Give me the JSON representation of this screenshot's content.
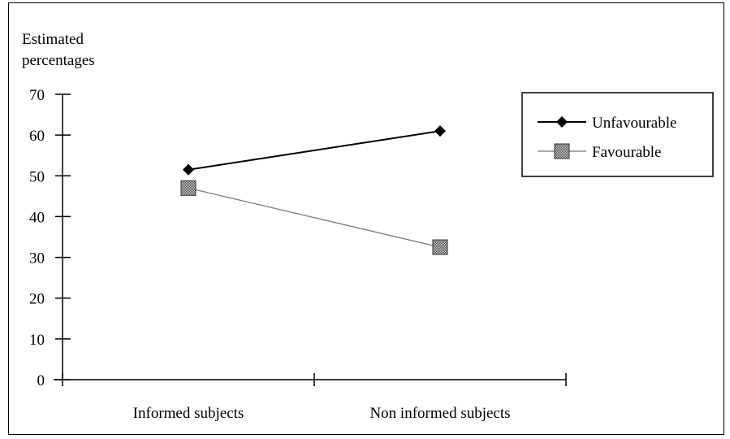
{
  "chart_data": {
    "type": "line",
    "title": "",
    "ylabel_lines": [
      "Estimated",
      "percentages"
    ],
    "xlabel": "",
    "categories": [
      "Informed subjects",
      "Non informed subjects"
    ],
    "ylim": [
      0,
      70
    ],
    "yticks": [
      0,
      10,
      20,
      30,
      40,
      50,
      60,
      70
    ],
    "grid": false,
    "legend_position": "top-right",
    "series": [
      {
        "name": "Unfavourable",
        "values": [
          51.5,
          61
        ],
        "marker": "diamond",
        "color": "#000000"
      },
      {
        "name": "Favourable",
        "values": [
          47,
          32.5
        ],
        "marker": "square",
        "color": "#7a7a7a"
      }
    ]
  }
}
